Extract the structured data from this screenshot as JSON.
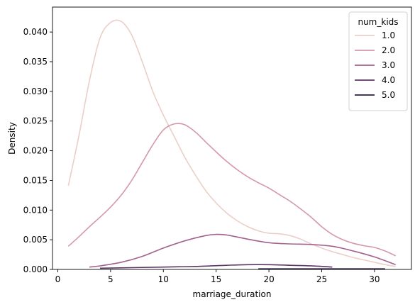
{
  "chart_data": {
    "type": "line",
    "title": "",
    "xlabel": "marriage_duration",
    "ylabel": "Density",
    "xlim": [
      -0.5,
      33.5
    ],
    "ylim": [
      0,
      0.0442
    ],
    "xticks": [
      0,
      5,
      10,
      15,
      20,
      25,
      30
    ],
    "yticks": [
      0.0,
      0.005,
      0.01,
      0.015,
      0.02,
      0.025,
      0.03,
      0.035,
      0.04
    ],
    "ytick_labels": [
      "0.000",
      "0.005",
      "0.010",
      "0.015",
      "0.020",
      "0.025",
      "0.030",
      "0.035",
      "0.040"
    ],
    "grid": false,
    "legend": {
      "title": "num_kids",
      "placement": "top-right"
    },
    "series": [
      {
        "name": "1.0",
        "color": "#ebcfc6",
        "x": [
          1,
          2,
          3,
          4,
          5,
          6,
          7,
          8,
          9,
          10,
          11,
          12,
          13,
          14,
          15,
          16,
          17,
          18,
          19,
          20,
          21,
          22,
          23,
          24,
          25,
          26,
          27,
          28,
          29,
          30,
          31,
          32
        ],
        "y": [
          0.0141,
          0.0225,
          0.0318,
          0.039,
          0.0416,
          0.0418,
          0.0395,
          0.035,
          0.03,
          0.026,
          0.0225,
          0.019,
          0.016,
          0.0133,
          0.0112,
          0.0095,
          0.0082,
          0.0072,
          0.0065,
          0.0061,
          0.006,
          0.0057,
          0.0051,
          0.0043,
          0.0036,
          0.003,
          0.0025,
          0.002,
          0.0016,
          0.0012,
          0.0008,
          0.0005
        ]
      },
      {
        "name": "2.0",
        "color": "#d598ab",
        "x": [
          1,
          2,
          3,
          4,
          5,
          6,
          7,
          8,
          9,
          10,
          11,
          12,
          13,
          14,
          15,
          16,
          17,
          18,
          19,
          20,
          21,
          22,
          23,
          24,
          25,
          26,
          27,
          28,
          29,
          30,
          31,
          32
        ],
        "y": [
          0.0039,
          0.0055,
          0.0072,
          0.0088,
          0.0105,
          0.0125,
          0.015,
          0.018,
          0.021,
          0.0235,
          0.0245,
          0.0244,
          0.0232,
          0.0215,
          0.0198,
          0.0182,
          0.0168,
          0.0156,
          0.0146,
          0.0137,
          0.0126,
          0.0115,
          0.0102,
          0.0088,
          0.0072,
          0.0059,
          0.005,
          0.0044,
          0.004,
          0.0037,
          0.0031,
          0.0023
        ]
      },
      {
        "name": "3.0",
        "color": "#a3618d",
        "x": [
          3,
          4,
          6,
          8,
          10,
          12,
          14,
          15,
          16,
          18,
          20,
          22,
          24,
          26,
          28,
          30,
          32
        ],
        "y": [
          0.0004,
          0.0006,
          0.0012,
          0.0022,
          0.0036,
          0.0048,
          0.0057,
          0.0059,
          0.0058,
          0.0051,
          0.0045,
          0.0043,
          0.0042,
          0.0039,
          0.0031,
          0.0021,
          0.0008
        ]
      },
      {
        "name": "4.0",
        "color": "#5e3566",
        "x": [
          4,
          7,
          10,
          13,
          16,
          18,
          20,
          22,
          24,
          26
        ],
        "y": [
          0.0002,
          0.0003,
          0.0004,
          0.0005,
          0.0007,
          0.0008,
          0.0008,
          0.0007,
          0.0006,
          0.0004
        ]
      },
      {
        "name": "5.0",
        "color": "#2d1e3e",
        "x": [
          19,
          22,
          25,
          28,
          31
        ],
        "y": [
          0.0001,
          0.0001,
          0.0001,
          0.0001,
          0.0001
        ]
      }
    ]
  }
}
